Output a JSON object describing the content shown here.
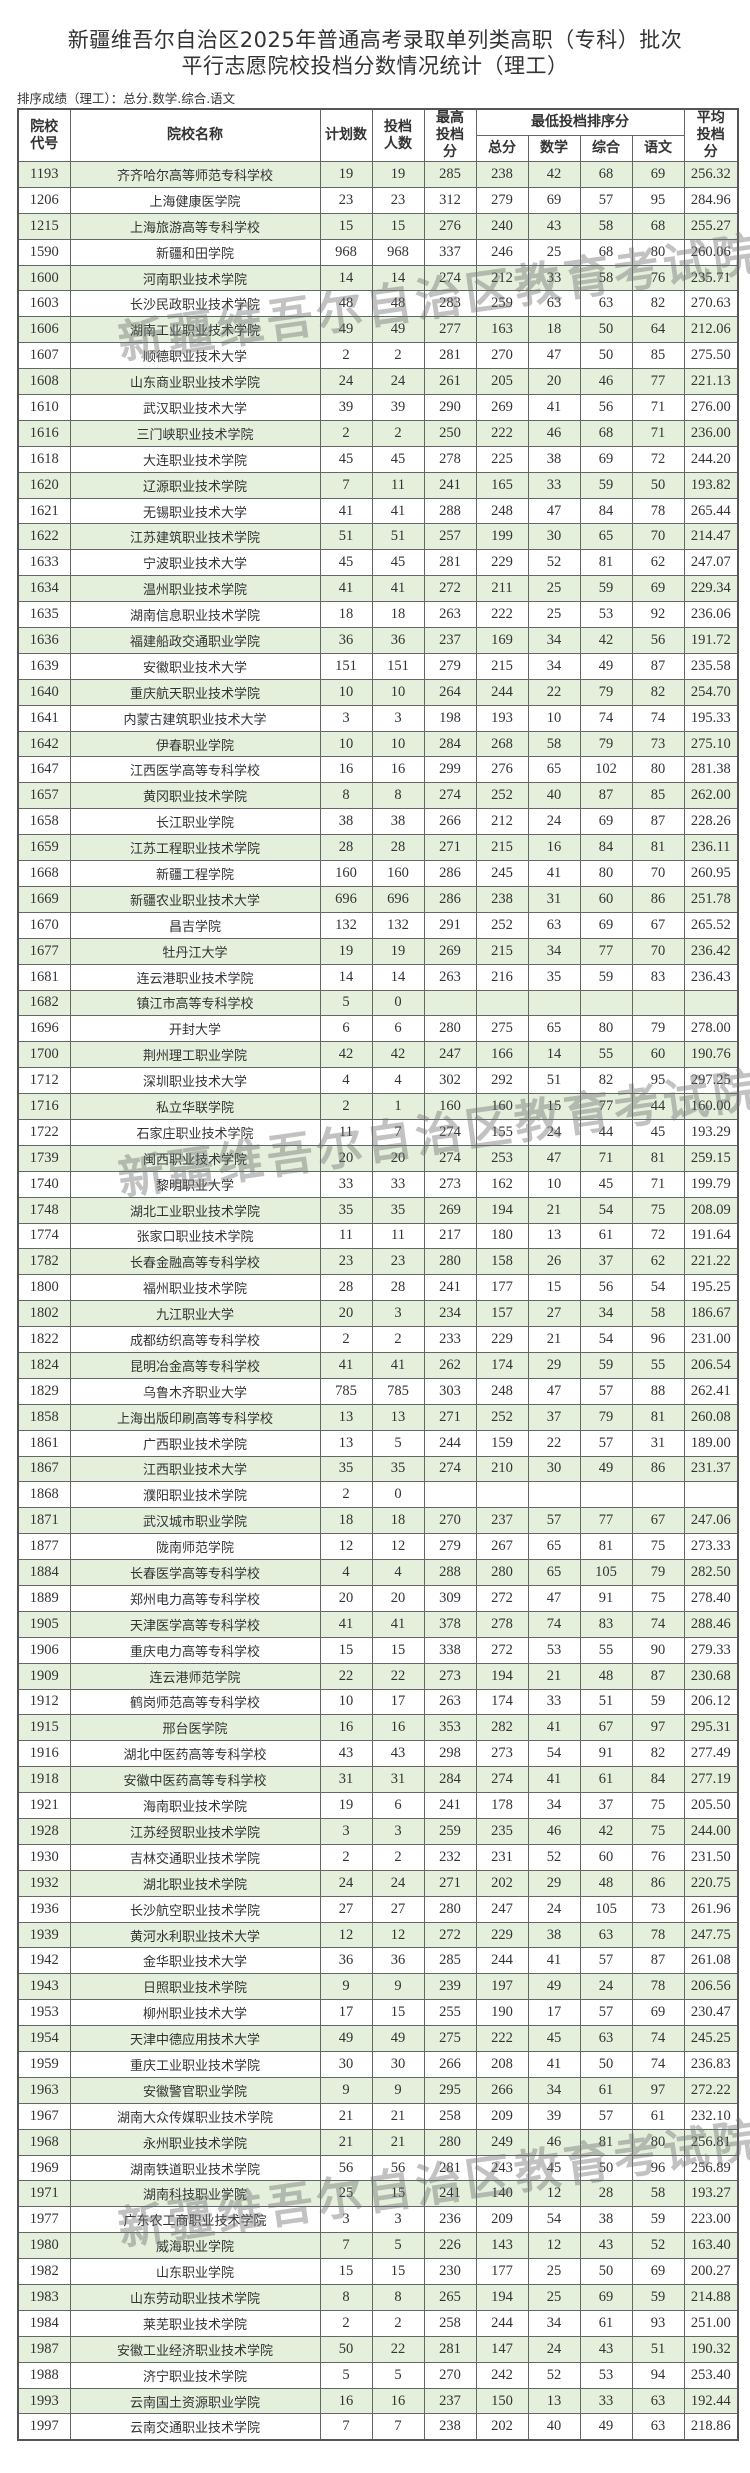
{
  "title_line1": "新疆维吾尔自治区2025年普通高考录取单列类高职（专科）批次",
  "title_line2": "平行志愿院校投档分数情况统计（理工）",
  "subtitle": "排序成绩（理工）：总分.数学.综合.语文",
  "watermark": "新疆维吾尔自治区教育考试院",
  "colors": {
    "odd_row": "#e4efdc",
    "even_row": "#ffffff",
    "border": "#666666"
  },
  "table": {
    "headers": {
      "code": "院校代号",
      "name": "院校名称",
      "plan": "计划数",
      "admitted": "投档人数",
      "max": "最高投档分",
      "min_group": "最低投档排序分",
      "total": "总分",
      "math": "数学",
      "comp": "综合",
      "chinese": "语文",
      "avg": "平均投档分"
    },
    "rows": [
      [
        "1193",
        "齐齐哈尔高等师范专科学校",
        "19",
        "19",
        "285",
        "238",
        "42",
        "68",
        "69",
        "256.32"
      ],
      [
        "1206",
        "上海健康医学院",
        "23",
        "23",
        "312",
        "279",
        "69",
        "57",
        "95",
        "284.96"
      ],
      [
        "1215",
        "上海旅游高等专科学校",
        "15",
        "15",
        "276",
        "240",
        "43",
        "58",
        "68",
        "255.27"
      ],
      [
        "1590",
        "新疆和田学院",
        "968",
        "968",
        "337",
        "246",
        "25",
        "68",
        "80",
        "260.06"
      ],
      [
        "1600",
        "河南职业技术学院",
        "14",
        "14",
        "274",
        "212",
        "33",
        "58",
        "76",
        "235.71"
      ],
      [
        "1603",
        "长沙民政职业技术学院",
        "48",
        "48",
        "283",
        "259",
        "63",
        "63",
        "82",
        "270.63"
      ],
      [
        "1606",
        "湖南工业职业技术学院",
        "49",
        "49",
        "277",
        "163",
        "18",
        "50",
        "64",
        "212.06"
      ],
      [
        "1607",
        "顺德职业技术大学",
        "2",
        "2",
        "281",
        "270",
        "47",
        "50",
        "85",
        "275.50"
      ],
      [
        "1608",
        "山东商业职业技术学院",
        "24",
        "24",
        "261",
        "205",
        "20",
        "46",
        "77",
        "221.13"
      ],
      [
        "1610",
        "武汉职业技术大学",
        "39",
        "39",
        "290",
        "269",
        "41",
        "56",
        "71",
        "276.00"
      ],
      [
        "1616",
        "三门峡职业技术学院",
        "2",
        "2",
        "250",
        "222",
        "46",
        "68",
        "71",
        "236.00"
      ],
      [
        "1618",
        "大连职业技术学院",
        "45",
        "45",
        "278",
        "225",
        "38",
        "69",
        "72",
        "244.20"
      ],
      [
        "1620",
        "辽源职业技术学院",
        "7",
        "11",
        "241",
        "165",
        "33",
        "59",
        "50",
        "193.82"
      ],
      [
        "1621",
        "无锡职业技术大学",
        "41",
        "41",
        "288",
        "248",
        "47",
        "84",
        "78",
        "265.44"
      ],
      [
        "1622",
        "江苏建筑职业技术学院",
        "51",
        "51",
        "257",
        "199",
        "30",
        "65",
        "70",
        "214.47"
      ],
      [
        "1633",
        "宁波职业技术大学",
        "45",
        "45",
        "281",
        "229",
        "52",
        "81",
        "62",
        "247.07"
      ],
      [
        "1634",
        "温州职业技术学院",
        "41",
        "41",
        "272",
        "211",
        "25",
        "59",
        "69",
        "229.34"
      ],
      [
        "1635",
        "湖南信息职业技术学院",
        "18",
        "18",
        "263",
        "222",
        "25",
        "53",
        "92",
        "236.06"
      ],
      [
        "1636",
        "福建船政交通职业学院",
        "36",
        "36",
        "237",
        "169",
        "34",
        "42",
        "56",
        "191.72"
      ],
      [
        "1639",
        "安徽职业技术大学",
        "151",
        "151",
        "279",
        "215",
        "34",
        "49",
        "87",
        "235.58"
      ],
      [
        "1640",
        "重庆航天职业技术学院",
        "10",
        "10",
        "264",
        "244",
        "22",
        "79",
        "82",
        "254.70"
      ],
      [
        "1641",
        "内蒙古建筑职业技术大学",
        "3",
        "3",
        "198",
        "193",
        "10",
        "74",
        "74",
        "195.33"
      ],
      [
        "1642",
        "伊春职业学院",
        "10",
        "10",
        "284",
        "268",
        "58",
        "79",
        "73",
        "275.10"
      ],
      [
        "1647",
        "江西医学高等专科学校",
        "16",
        "16",
        "299",
        "276",
        "65",
        "102",
        "80",
        "281.38"
      ],
      [
        "1657",
        "黄冈职业技术学院",
        "8",
        "8",
        "274",
        "252",
        "40",
        "87",
        "85",
        "262.00"
      ],
      [
        "1658",
        "长江职业学院",
        "38",
        "38",
        "266",
        "212",
        "24",
        "69",
        "87",
        "228.26"
      ],
      [
        "1659",
        "江苏工程职业技术学院",
        "28",
        "28",
        "271",
        "215",
        "16",
        "84",
        "81",
        "236.11"
      ],
      [
        "1668",
        "新疆工程学院",
        "160",
        "160",
        "286",
        "245",
        "41",
        "80",
        "70",
        "260.95"
      ],
      [
        "1669",
        "新疆农业职业技术大学",
        "696",
        "696",
        "286",
        "238",
        "31",
        "60",
        "86",
        "251.78"
      ],
      [
        "1670",
        "昌吉学院",
        "132",
        "132",
        "291",
        "252",
        "63",
        "69",
        "67",
        "265.52"
      ],
      [
        "1677",
        "牡丹江大学",
        "19",
        "19",
        "269",
        "215",
        "34",
        "77",
        "70",
        "236.42"
      ],
      [
        "1681",
        "连云港职业技术学院",
        "14",
        "14",
        "263",
        "216",
        "35",
        "59",
        "83",
        "236.43"
      ],
      [
        "1682",
        "镇江市高等专科学校",
        "5",
        "0",
        "",
        "",
        "",
        "",
        "",
        ""
      ],
      [
        "1696",
        "开封大学",
        "6",
        "6",
        "280",
        "275",
        "65",
        "80",
        "79",
        "278.00"
      ],
      [
        "1700",
        "荆州理工职业学院",
        "42",
        "42",
        "247",
        "166",
        "14",
        "55",
        "60",
        "190.76"
      ],
      [
        "1712",
        "深圳职业技术大学",
        "4",
        "4",
        "302",
        "292",
        "51",
        "82",
        "95",
        "297.25"
      ],
      [
        "1716",
        "私立华联学院",
        "2",
        "1",
        "160",
        "160",
        "15",
        "77",
        "44",
        "160.00"
      ],
      [
        "1722",
        "石家庄职业技术学院",
        "11",
        "7",
        "274",
        "155",
        "24",
        "44",
        "45",
        "193.29"
      ],
      [
        "1739",
        "闽西职业技术学院",
        "20",
        "20",
        "274",
        "253",
        "47",
        "71",
        "81",
        "259.15"
      ],
      [
        "1740",
        "黎明职业大学",
        "33",
        "33",
        "273",
        "162",
        "10",
        "45",
        "71",
        "199.79"
      ],
      [
        "1748",
        "湖北工业职业技术学院",
        "35",
        "35",
        "269",
        "194",
        "21",
        "54",
        "75",
        "208.09"
      ],
      [
        "1774",
        "张家口职业技术学院",
        "11",
        "11",
        "217",
        "180",
        "13",
        "61",
        "72",
        "191.64"
      ],
      [
        "1782",
        "长春金融高等专科学校",
        "23",
        "23",
        "280",
        "158",
        "26",
        "37",
        "62",
        "221.22"
      ],
      [
        "1800",
        "福州职业技术学院",
        "28",
        "28",
        "241",
        "177",
        "15",
        "56",
        "54",
        "195.25"
      ],
      [
        "1802",
        "九江职业大学",
        "20",
        "3",
        "234",
        "157",
        "27",
        "34",
        "58",
        "186.67"
      ],
      [
        "1822",
        "成都纺织高等专科学校",
        "2",
        "2",
        "233",
        "229",
        "21",
        "54",
        "96",
        "231.00"
      ],
      [
        "1824",
        "昆明冶金高等专科学校",
        "41",
        "41",
        "262",
        "174",
        "29",
        "59",
        "55",
        "206.54"
      ],
      [
        "1829",
        "乌鲁木齐职业大学",
        "785",
        "785",
        "303",
        "248",
        "47",
        "57",
        "88",
        "262.41"
      ],
      [
        "1858",
        "上海出版印刷高等专科学校",
        "13",
        "13",
        "271",
        "252",
        "37",
        "79",
        "81",
        "260.08"
      ],
      [
        "1861",
        "广西职业技术学院",
        "13",
        "5",
        "244",
        "159",
        "22",
        "57",
        "31",
        "189.00"
      ],
      [
        "1867",
        "江西职业技术大学",
        "35",
        "35",
        "274",
        "210",
        "30",
        "49",
        "86",
        "231.37"
      ],
      [
        "1868",
        "濮阳职业技术学院",
        "2",
        "0",
        "",
        "",
        "",
        "",
        "",
        ""
      ],
      [
        "1871",
        "武汉城市职业学院",
        "18",
        "18",
        "270",
        "237",
        "57",
        "77",
        "67",
        "247.06"
      ],
      [
        "1877",
        "陇南师范学院",
        "12",
        "12",
        "279",
        "267",
        "65",
        "81",
        "75",
        "273.33"
      ],
      [
        "1884",
        "长春医学高等专科学校",
        "4",
        "4",
        "288",
        "280",
        "65",
        "105",
        "79",
        "282.50"
      ],
      [
        "1889",
        "郑州电力高等专科学校",
        "20",
        "20",
        "309",
        "272",
        "47",
        "91",
        "75",
        "278.40"
      ],
      [
        "1905",
        "天津医学高等专科学校",
        "41",
        "41",
        "378",
        "278",
        "74",
        "83",
        "74",
        "288.46"
      ],
      [
        "1906",
        "重庆电力高等专科学校",
        "15",
        "15",
        "338",
        "272",
        "53",
        "55",
        "90",
        "279.33"
      ],
      [
        "1909",
        "连云港师范学院",
        "22",
        "22",
        "273",
        "194",
        "21",
        "48",
        "87",
        "230.68"
      ],
      [
        "1912",
        "鹤岗师范高等专科学校",
        "10",
        "17",
        "263",
        "174",
        "33",
        "51",
        "59",
        "206.12"
      ],
      [
        "1915",
        "邢台医学院",
        "16",
        "16",
        "353",
        "282",
        "41",
        "67",
        "97",
        "295.31"
      ],
      [
        "1916",
        "湖北中医药高等专科学校",
        "43",
        "43",
        "298",
        "273",
        "54",
        "91",
        "82",
        "277.49"
      ],
      [
        "1918",
        "安徽中医药高等专科学校",
        "31",
        "31",
        "284",
        "274",
        "41",
        "61",
        "84",
        "277.19"
      ],
      [
        "1921",
        "海南职业技术学院",
        "19",
        "6",
        "241",
        "178",
        "34",
        "37",
        "75",
        "205.50"
      ],
      [
        "1928",
        "江苏经贸职业技术学院",
        "3",
        "3",
        "259",
        "235",
        "46",
        "42",
        "75",
        "244.00"
      ],
      [
        "1930",
        "吉林交通职业技术学院",
        "2",
        "2",
        "232",
        "231",
        "52",
        "60",
        "76",
        "231.50"
      ],
      [
        "1932",
        "湖北职业技术学院",
        "24",
        "24",
        "271",
        "202",
        "29",
        "48",
        "86",
        "220.75"
      ],
      [
        "1936",
        "长沙航空职业技术学院",
        "27",
        "27",
        "280",
        "247",
        "24",
        "105",
        "73",
        "261.96"
      ],
      [
        "1939",
        "黄河水利职业技术大学",
        "12",
        "12",
        "272",
        "229",
        "38",
        "63",
        "78",
        "247.75"
      ],
      [
        "1942",
        "金华职业技术大学",
        "36",
        "36",
        "285",
        "244",
        "41",
        "57",
        "87",
        "261.08"
      ],
      [
        "1943",
        "日照职业技术学院",
        "9",
        "9",
        "239",
        "197",
        "49",
        "24",
        "78",
        "206.56"
      ],
      [
        "1953",
        "柳州职业技术大学",
        "17",
        "15",
        "255",
        "190",
        "17",
        "57",
        "69",
        "230.47"
      ],
      [
        "1954",
        "天津中德应用技术大学",
        "49",
        "49",
        "275",
        "222",
        "45",
        "63",
        "74",
        "245.25"
      ],
      [
        "1959",
        "重庆工业职业技术学院",
        "30",
        "30",
        "266",
        "208",
        "41",
        "50",
        "74",
        "236.83"
      ],
      [
        "1963",
        "安徽警官职业学院",
        "9",
        "9",
        "295",
        "266",
        "34",
        "61",
        "97",
        "272.22"
      ],
      [
        "1967",
        "湖南大众传媒职业技术学院",
        "21",
        "21",
        "258",
        "209",
        "39",
        "57",
        "61",
        "232.10"
      ],
      [
        "1968",
        "永州职业技术学院",
        "21",
        "21",
        "280",
        "249",
        "46",
        "81",
        "80",
        "256.81"
      ],
      [
        "1969",
        "湖南铁道职业技术学院",
        "56",
        "56",
        "281",
        "243",
        "45",
        "50",
        "96",
        "256.89"
      ],
      [
        "1971",
        "湖南科技职业学院",
        "25",
        "15",
        "241",
        "140",
        "12",
        "28",
        "58",
        "193.27"
      ],
      [
        "1977",
        "广东农工商职业技术学院",
        "3",
        "3",
        "236",
        "209",
        "54",
        "38",
        "59",
        "223.00"
      ],
      [
        "1980",
        "威海职业学院",
        "7",
        "5",
        "226",
        "143",
        "12",
        "43",
        "52",
        "163.40"
      ],
      [
        "1982",
        "山东职业学院",
        "15",
        "15",
        "230",
        "177",
        "25",
        "50",
        "69",
        "200.27"
      ],
      [
        "1983",
        "山东劳动职业技术学院",
        "8",
        "8",
        "265",
        "194",
        "25",
        "69",
        "59",
        "214.88"
      ],
      [
        "1984",
        "莱芜职业技术学院",
        "2",
        "2",
        "258",
        "244",
        "34",
        "61",
        "93",
        "251.00"
      ],
      [
        "1987",
        "安徽工业经济职业技术学院",
        "50",
        "22",
        "281",
        "147",
        "24",
        "43",
        "51",
        "190.32"
      ],
      [
        "1988",
        "济宁职业技术学院",
        "5",
        "5",
        "270",
        "242",
        "52",
        "53",
        "94",
        "253.40"
      ],
      [
        "1993",
        "云南国土资源职业学院",
        "16",
        "16",
        "237",
        "150",
        "13",
        "33",
        "63",
        "192.44"
      ],
      [
        "1997",
        "云南交通职业技术学院",
        "7",
        "7",
        "238",
        "202",
        "40",
        "49",
        "63",
        "218.86"
      ]
    ]
  }
}
